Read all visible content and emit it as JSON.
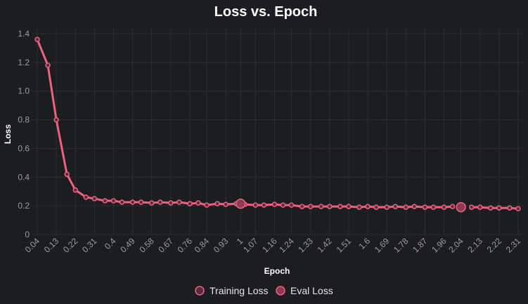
{
  "colors": {
    "background": "#1c1d21",
    "grid": "#2c2e34",
    "training_line": "#f0607f",
    "training_point_fill": "#5a2b3a",
    "eval_point_fill": "#8e3a52",
    "eval_point_stroke": "#f0607f",
    "tick_text": "#9a9ca3",
    "title_text": "#ffffff"
  },
  "chart_data": {
    "type": "line",
    "title": "Loss vs. Epoch",
    "xlabel": "Epoch",
    "ylabel": "Loss",
    "ylim": [
      0,
      1.4
    ],
    "yticks": [
      0,
      0.2,
      0.4,
      0.6,
      0.8,
      1.0,
      1.2,
      1.4
    ],
    "ytick_labels": [
      "0",
      "0.2",
      "0.4",
      "0.6",
      "0.8",
      "1.0",
      "1.2",
      "1.4"
    ],
    "xtick_labels": [
      "0.04",
      "0.13",
      "0.22",
      "0.31",
      "0.4",
      "0.49",
      "0.58",
      "0.67",
      "0.76",
      "0.84",
      "0.93",
      "1",
      "1.07",
      "1.16",
      "1.24",
      "1.33",
      "1.42",
      "1.51",
      "1.6",
      "1.69",
      "1.78",
      "1.87",
      "1.96",
      "2.04",
      "2.13",
      "2.22",
      "2.31"
    ],
    "grid": true,
    "legend_position": "bottom-center",
    "series": [
      {
        "name": "Training Loss",
        "segments": [
          {
            "x": [
              0.04,
              0.09,
              0.13,
              0.18,
              0.22,
              0.27,
              0.31,
              0.36,
              0.4,
              0.44,
              0.49,
              0.53,
              0.58,
              0.62,
              0.67,
              0.71,
              0.76,
              0.8,
              0.84,
              0.89,
              0.93,
              0.98
            ],
            "y": [
              1.36,
              1.18,
              0.8,
              0.42,
              0.31,
              0.26,
              0.25,
              0.235,
              0.235,
              0.225,
              0.225,
              0.225,
              0.22,
              0.225,
              0.22,
              0.225,
              0.215,
              0.22,
              0.205,
              0.215,
              0.21,
              0.215
            ]
          },
          {
            "x": [
              1.02,
              1.07,
              1.11,
              1.16,
              1.2,
              1.24,
              1.29,
              1.33,
              1.38,
              1.42,
              1.47,
              1.51,
              1.56,
              1.6,
              1.64,
              1.69,
              1.73,
              1.78,
              1.82,
              1.87,
              1.91,
              1.96,
              2.0
            ],
            "y": [
              0.21,
              0.205,
              0.205,
              0.21,
              0.205,
              0.205,
              0.195,
              0.195,
              0.195,
              0.195,
              0.195,
              0.195,
              0.19,
              0.195,
              0.19,
              0.19,
              0.195,
              0.19,
              0.195,
              0.19,
              0.19,
              0.19,
              0.195
            ]
          },
          {
            "x": [
              2.09,
              2.13,
              2.18,
              2.22,
              2.27,
              2.31
            ],
            "y": [
              0.19,
              0.19,
              0.185,
              0.185,
              0.185,
              0.18
            ]
          }
        ]
      },
      {
        "name": "Eval Loss",
        "x": [
          1.0,
          2.04
        ],
        "y": [
          0.215,
          0.19
        ]
      }
    ]
  }
}
